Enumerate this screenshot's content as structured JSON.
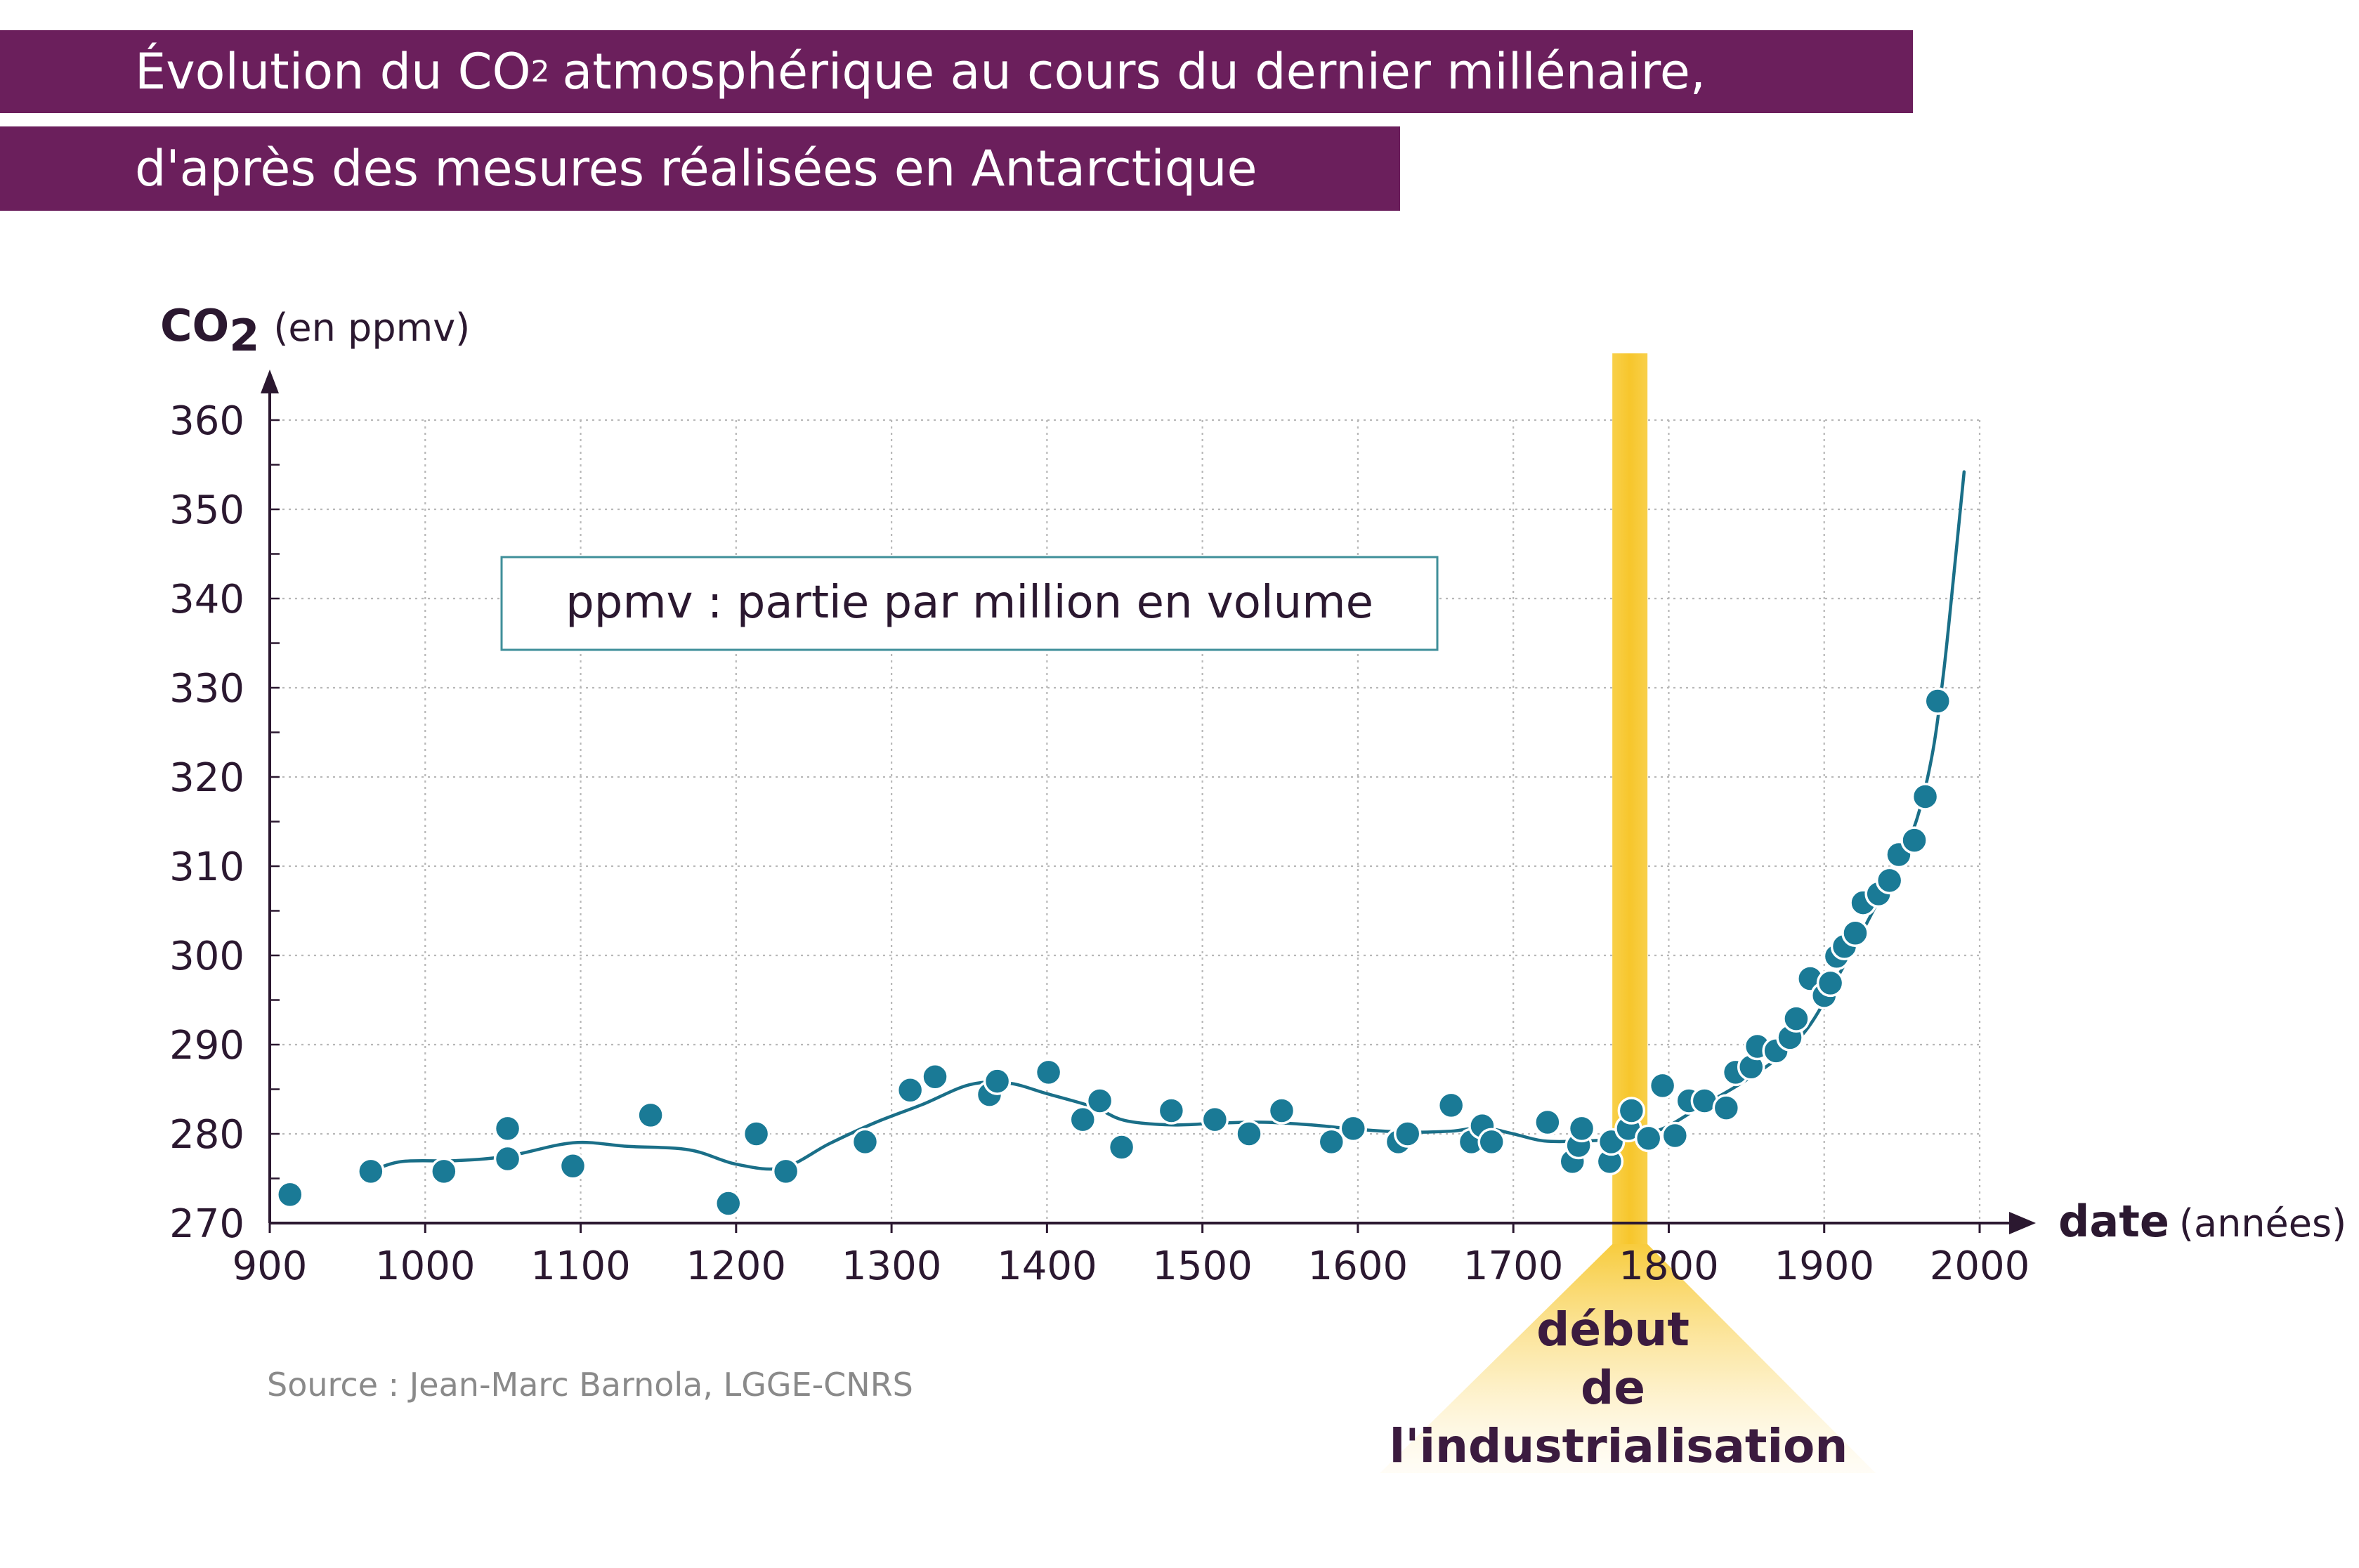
{
  "title": {
    "line1_pre": "Évolution du CO",
    "line1_sub": "2",
    "line1_post": "atmosphérique au cours du dernier millénaire,",
    "line2": "d'après des mesures réalisées en Antarctique"
  },
  "colors": {
    "title_bg": "#6b1f5c",
    "point": "#1a7a96",
    "line": "#1a6f88",
    "marker_band": "#f7c933",
    "axis": "#2b1830"
  },
  "note": "ppmv : partie par million en volume",
  "source": "Source : Jean-Marc Barnola, LGGE-CNRS",
  "annotation": {
    "lines": [
      "début",
      "de",
      "l'industrialisation"
    ],
    "year": 1775
  },
  "chart_data": {
    "type": "scatter",
    "ylabel": {
      "bold": "CO",
      "sub": "2",
      "light": "(en ppmv)"
    },
    "xlabel": {
      "bold": "date",
      "light": "(années)"
    },
    "xlim": [
      900,
      2000
    ],
    "ylim": [
      270,
      360
    ],
    "xticks": [
      900,
      1000,
      1100,
      1200,
      1300,
      1400,
      1500,
      1600,
      1700,
      1800,
      1900,
      2000
    ],
    "yticks": [
      270,
      280,
      290,
      300,
      310,
      320,
      330,
      340,
      350,
      360
    ],
    "grid": true,
    "points": [
      [
        913,
        273.2
      ],
      [
        965,
        275.8
      ],
      [
        1012,
        275.8
      ],
      [
        1053,
        280.6
      ],
      [
        1053,
        277.2
      ],
      [
        1095,
        276.4
      ],
      [
        1145,
        282.1
      ],
      [
        1195,
        272.2
      ],
      [
        1213,
        280.0
      ],
      [
        1232,
        275.8
      ],
      [
        1283,
        279.1
      ],
      [
        1312,
        284.9
      ],
      [
        1328,
        286.4
      ],
      [
        1363,
        284.4
      ],
      [
        1368,
        285.9
      ],
      [
        1401,
        286.9
      ],
      [
        1423,
        281.6
      ],
      [
        1434,
        283.7
      ],
      [
        1448,
        278.5
      ],
      [
        1480,
        282.6
      ],
      [
        1508,
        281.6
      ],
      [
        1530,
        280.0
      ],
      [
        1551,
        282.6
      ],
      [
        1583,
        279.1
      ],
      [
        1597,
        280.6
      ],
      [
        1626,
        279.1
      ],
      [
        1632,
        280.0
      ],
      [
        1660,
        283.2
      ],
      [
        1673,
        279.1
      ],
      [
        1680,
        280.9
      ],
      [
        1686,
        279.1
      ],
      [
        1722,
        281.3
      ],
      [
        1738,
        276.9
      ],
      [
        1742,
        278.7
      ],
      [
        1744,
        280.6
      ],
      [
        1762,
        276.9
      ],
      [
        1763,
        279.1
      ],
      [
        1774,
        280.6
      ],
      [
        1776,
        282.6
      ],
      [
        1787,
        279.5
      ],
      [
        1796,
        285.4
      ],
      [
        1804,
        279.8
      ],
      [
        1813,
        283.7
      ],
      [
        1823,
        283.7
      ],
      [
        1837,
        282.9
      ],
      [
        1843,
        286.9
      ],
      [
        1853,
        287.5
      ],
      [
        1857,
        289.8
      ],
      [
        1869,
        289.3
      ],
      [
        1878,
        290.8
      ],
      [
        1882,
        292.9
      ],
      [
        1891,
        297.4
      ],
      [
        1900,
        295.5
      ],
      [
        1904,
        296.9
      ],
      [
        1908,
        299.9
      ],
      [
        1913,
        301.0
      ],
      [
        1920,
        302.5
      ],
      [
        1925,
        305.9
      ],
      [
        1935,
        306.9
      ],
      [
        1942,
        308.4
      ],
      [
        1948,
        311.3
      ],
      [
        1958,
        312.9
      ],
      [
        1965,
        317.8
      ],
      [
        1973,
        328.5
      ]
    ],
    "trend": [
      [
        965,
        275.8
      ],
      [
        985,
        276.9
      ],
      [
        1020,
        277.0
      ],
      [
        1053,
        277.5
      ],
      [
        1095,
        279.0
      ],
      [
        1130,
        278.6
      ],
      [
        1170,
        278.2
      ],
      [
        1200,
        276.6
      ],
      [
        1230,
        276.2
      ],
      [
        1260,
        278.9
      ],
      [
        1290,
        281.3
      ],
      [
        1320,
        283.3
      ],
      [
        1350,
        285.5
      ],
      [
        1375,
        285.7
      ],
      [
        1400,
        284.5
      ],
      [
        1430,
        283.0
      ],
      [
        1450,
        281.5
      ],
      [
        1480,
        281.0
      ],
      [
        1510,
        281.2
      ],
      [
        1540,
        281.3
      ],
      [
        1570,
        281.0
      ],
      [
        1600,
        280.5
      ],
      [
        1630,
        280.2
      ],
      [
        1660,
        280.3
      ],
      [
        1680,
        280.7
      ],
      [
        1700,
        280.0
      ],
      [
        1720,
        279.2
      ],
      [
        1745,
        279.2
      ],
      [
        1770,
        279.5
      ],
      [
        1795,
        280.5
      ],
      [
        1820,
        283.0
      ],
      [
        1845,
        285.5
      ],
      [
        1870,
        288.5
      ],
      [
        1890,
        292.0
      ],
      [
        1910,
        298.0
      ],
      [
        1930,
        304.5
      ],
      [
        1950,
        311.5
      ],
      [
        1960,
        315.5
      ],
      [
        1970,
        323.0
      ],
      [
        1977,
        332.0
      ],
      [
        1983,
        342.0
      ],
      [
        1990,
        354.2
      ]
    ]
  }
}
